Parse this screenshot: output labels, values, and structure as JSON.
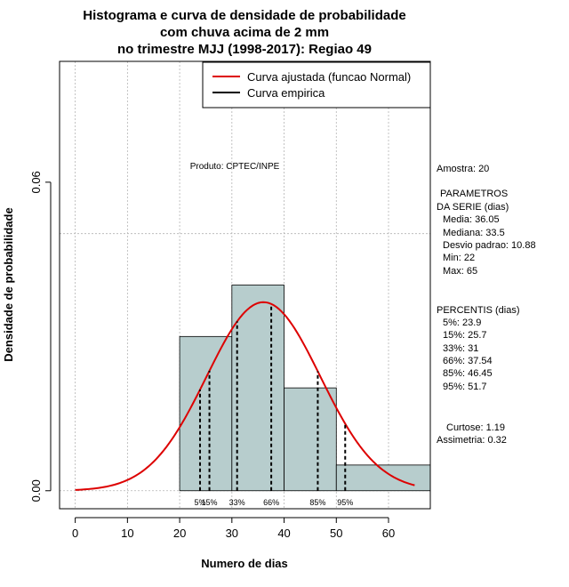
{
  "chart_data": {
    "type": "bar",
    "title": [
      "Histograma e curva de densidade de probabilidade",
      "com chuva acima de 2 mm",
      "no trimestre MJJ (1998-2017): Regiao 49"
    ],
    "xlabel": "Numero de dias",
    "ylabel": "Densidade de probabilidade",
    "xlim": [
      -3,
      68
    ],
    "ylim": [
      -0.0035,
      0.0835
    ],
    "x_ticks": [
      0,
      10,
      20,
      30,
      40,
      50,
      60
    ],
    "y_ticks": [
      0.0,
      0.06
    ],
    "y_tick_labels": [
      "0.00",
      "0.06"
    ],
    "grid": true,
    "grid_x": [
      0,
      10,
      20,
      30,
      40,
      50,
      60
    ],
    "grid_y": [
      0.0,
      0.05
    ],
    "bins": [
      {
        "start": 20,
        "end": 30,
        "density": 0.03
      },
      {
        "start": 30,
        "end": 40,
        "density": 0.04
      },
      {
        "start": 40,
        "end": 50,
        "density": 0.02
      },
      {
        "start": 50,
        "end": 68,
        "density": 0.005
      }
    ],
    "curve": {
      "name": "Curva ajustada (funcao Normal)",
      "type": "normal",
      "mean": 36.05,
      "sd": 10.88,
      "x_range": [
        0,
        65
      ],
      "color": "#dd0000"
    },
    "empirical": {
      "name": "Curva empirica",
      "color": "#000000"
    },
    "percentiles": [
      {
        "label": "5%",
        "value": 23.9
      },
      {
        "label": "15%",
        "value": 25.7
      },
      {
        "label": "33%",
        "value": 31
      },
      {
        "label": "66%",
        "value": 37.54
      },
      {
        "label": "85%",
        "value": 46.45
      },
      {
        "label": "95%",
        "value": 51.7
      }
    ],
    "legend": {
      "position": "top-right",
      "entries": [
        "Curva ajustada (funcao Normal)",
        "Curva empirica"
      ]
    },
    "annotation": "Produto: CPTEC/INPE",
    "bar_color": "#b7cdcd",
    "grid_color": "#b4b4b4"
  },
  "side_panel": {
    "amostra": "Amostra: 20",
    "param_header_1": "PARAMETROS",
    "param_header_2": "DA SERIE (dias)",
    "media": "Media: 36.05",
    "mediana": "Mediana: 33.5",
    "desvio": "Desvio padrao: 10.88",
    "min": "Min: 22",
    "max": "Max: 65",
    "perc_header": "PERCENTIS (dias)",
    "p5": "5%: 23.9",
    "p15": "15%: 25.7",
    "p33": "33%: 31",
    "p66": "66%: 37.54",
    "p85": "85%: 46.45",
    "p95": "95%: 51.7",
    "curtose": "Curtose: 1.19",
    "assimetria": "Assimetria: 0.32"
  }
}
